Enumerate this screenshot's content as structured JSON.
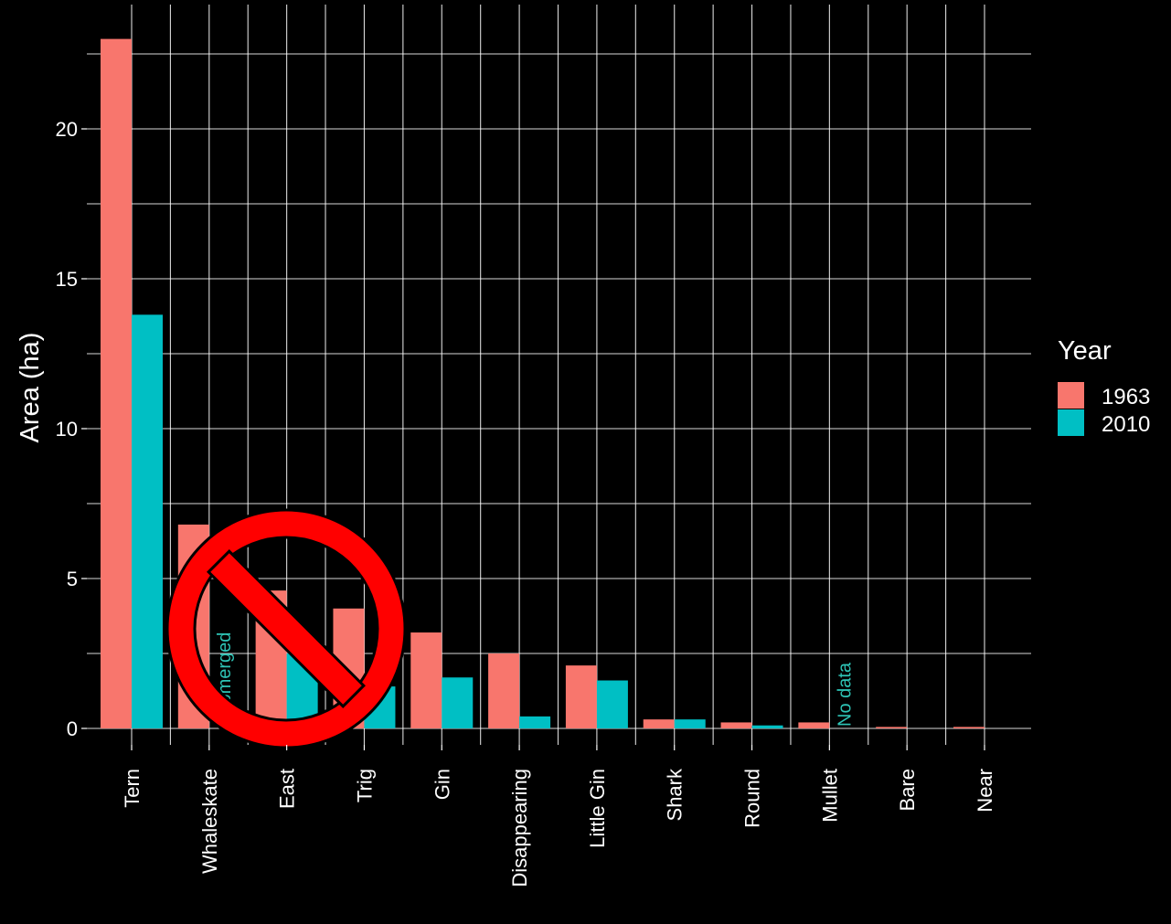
{
  "chart_data": {
    "type": "bar",
    "title": "",
    "xlabel": "",
    "ylabel": "Area (ha)",
    "ylim": [
      0,
      23.3
    ],
    "yticks": [
      0,
      5,
      10,
      15,
      20
    ],
    "grid": true,
    "categories": [
      "Tern",
      "Whaleskate",
      "East",
      "Trig",
      "Gin",
      "Disappearing",
      "Little Gin",
      "Shark",
      "Round",
      "Mullet",
      "Bare",
      "Near"
    ],
    "series": [
      {
        "name": "1963",
        "color": "#F8766D",
        "values": [
          23.0,
          6.8,
          4.6,
          4.0,
          3.2,
          2.5,
          2.1,
          0.3,
          0.2,
          0.2,
          0.05,
          0.05
        ]
      },
      {
        "name": "2010",
        "color": "#00BFC4",
        "values": [
          13.8,
          null,
          2.5,
          1.4,
          1.7,
          0.4,
          1.6,
          0.3,
          0.1,
          null,
          0,
          0
        ]
      }
    ],
    "legend": {
      "title": "Year",
      "position": "right"
    },
    "annotations": [
      {
        "text": "Submerged",
        "category": "Whaleskate",
        "series": "2010",
        "color": "#2EC4B6"
      },
      {
        "text": "No data",
        "category": "Mullet",
        "series": "2010",
        "color": "#2EC4B6"
      }
    ],
    "overlay": {
      "icon": "prohibited-icon",
      "color": "#FF0000"
    }
  }
}
